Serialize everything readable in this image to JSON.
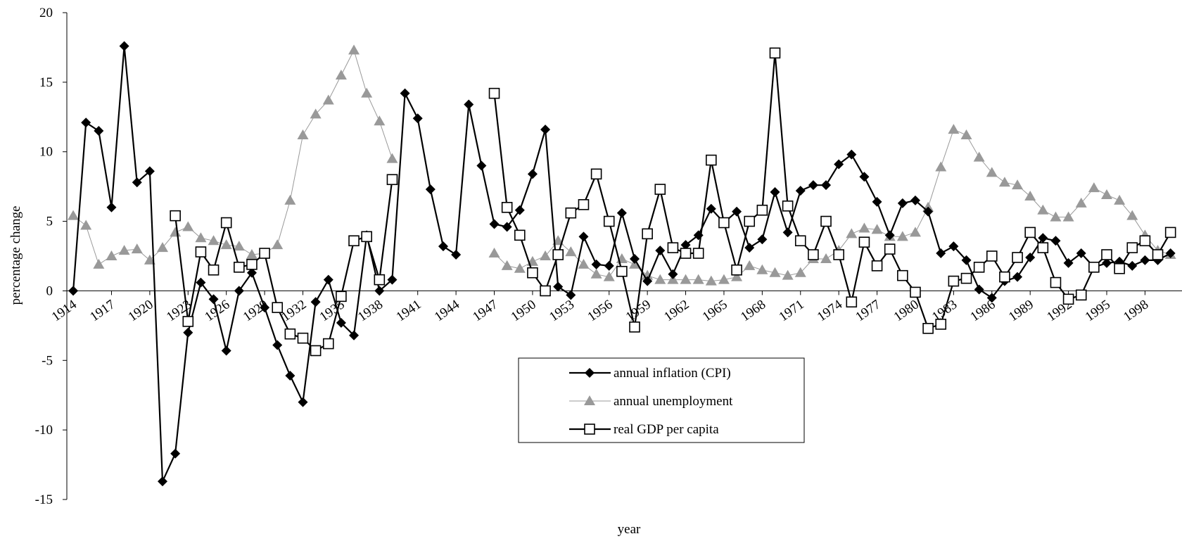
{
  "chart_data": {
    "type": "line",
    "x_label": "year",
    "y_label": "percentage change",
    "x": [
      1914,
      1915,
      1916,
      1917,
      1918,
      1919,
      1920,
      1921,
      1922,
      1923,
      1924,
      1925,
      1926,
      1927,
      1928,
      1929,
      1930,
      1931,
      1932,
      1933,
      1934,
      1935,
      1936,
      1937,
      1938,
      1939,
      1940,
      1941,
      1942,
      1943,
      1944,
      1945,
      1946,
      1947,
      1948,
      1949,
      1950,
      1951,
      1952,
      1953,
      1954,
      1955,
      1956,
      1957,
      1958,
      1959,
      1960,
      1961,
      1962,
      1963,
      1964,
      1965,
      1966,
      1967,
      1968,
      1969,
      1970,
      1971,
      1972,
      1973,
      1974,
      1975,
      1976,
      1977,
      1978,
      1979,
      1980,
      1981,
      1982,
      1983,
      1984,
      1985,
      1986,
      1987,
      1988,
      1989,
      1990,
      1991,
      1992,
      1993,
      1994,
      1995,
      1996,
      1997,
      1998,
      1999,
      2000
    ],
    "series": [
      {
        "name": "annual inflation (CPI)",
        "color": "#000000",
        "marker": "diamond",
        "values": [
          0,
          12.1,
          11.5,
          6.0,
          17.6,
          7.8,
          8.6,
          -13.7,
          -11.7,
          -3.0,
          0.6,
          -0.6,
          -4.3,
          0.0,
          1.3,
          -1.2,
          -3.9,
          -6.1,
          -8.0,
          -0.8,
          0.8,
          -2.3,
          -3.2,
          4.0,
          0.0,
          0.8,
          14.2,
          12.4,
          7.3,
          3.2,
          2.6,
          13.4,
          9.0,
          4.8,
          4.6,
          5.8,
          8.4,
          11.6,
          0.3,
          -0.3,
          3.9,
          1.9,
          1.8,
          5.6,
          2.3,
          0.7,
          2.9,
          1.2,
          3.3,
          4.0,
          5.9,
          4.9,
          5.7,
          3.1,
          3.7,
          7.1,
          4.2,
          7.2,
          7.6,
          7.6,
          9.1,
          9.8,
          8.2,
          6.4,
          4.0,
          6.3,
          6.5,
          5.7,
          2.7,
          3.2,
          2.2,
          0.1,
          -0.5,
          0.7,
          1.0,
          2.4,
          3.8,
          3.6,
          2.0,
          2.7,
          1.7,
          2.0,
          2.1,
          1.8,
          2.2,
          2.2,
          2.7
        ]
      },
      {
        "name": "annual unemployment",
        "color": "#999999",
        "marker": "triangle",
        "values": [
          5.4,
          4.7,
          1.9,
          2.5,
          2.9,
          3.0,
          2.2,
          3.1,
          4.2,
          4.6,
          3.8,
          3.6,
          3.3,
          3.2,
          2.6,
          2.7,
          3.3,
          6.5,
          11.2,
          12.7,
          13.7,
          15.5,
          17.3,
          14.2,
          12.2,
          9.5,
          null,
          null,
          null,
          null,
          null,
          null,
          null,
          2.7,
          1.8,
          1.6,
          2.1,
          2.5,
          3.6,
          2.8,
          1.9,
          1.2,
          1.0,
          2.3,
          1.9,
          1.1,
          0.8,
          0.8,
          0.8,
          0.8,
          0.7,
          0.8,
          1.0,
          1.8,
          1.5,
          1.3,
          1.1,
          1.3,
          2.3,
          2.3,
          2.9,
          4.1,
          4.5,
          4.4,
          3.9,
          3.9,
          4.2,
          6.0,
          8.9,
          11.6,
          11.2,
          9.6,
          8.5,
          7.8,
          7.6,
          6.8,
          5.8,
          5.3,
          5.3,
          6.3,
          7.4,
          6.9,
          6.5,
          5.4,
          4.0,
          2.9,
          2.6
        ]
      },
      {
        "name": "real GDP per capita",
        "color": "#000000",
        "marker": "square",
        "values": [
          null,
          null,
          null,
          null,
          null,
          null,
          null,
          null,
          5.4,
          -2.2,
          2.8,
          1.5,
          4.9,
          1.7,
          1.9,
          2.7,
          -1.2,
          -3.1,
          -3.4,
          -4.3,
          -3.8,
          -0.4,
          3.6,
          3.9,
          0.8,
          8.0,
          null,
          null,
          null,
          null,
          null,
          null,
          null,
          14.2,
          6.0,
          4.0,
          1.3,
          0.0,
          2.6,
          5.6,
          6.2,
          8.4,
          5.0,
          1.4,
          -2.6,
          4.1,
          7.3,
          3.1,
          2.7,
          2.7,
          9.4,
          4.9,
          1.5,
          5.0,
          5.8,
          17.1,
          6.1,
          3.6,
          2.6,
          5.0,
          2.6,
          -0.8,
          3.5,
          1.8,
          3.0,
          1.1,
          -0.1,
          -2.7,
          -2.4,
          0.7,
          0.9,
          1.7,
          2.5,
          1.0,
          2.4,
          4.2,
          3.1,
          0.6,
          -0.6,
          -0.3,
          1.7,
          2.6,
          1.6,
          3.1,
          3.6,
          2.6,
          4.2
        ]
      }
    ],
    "xlim": [
      1913.5,
      2000.9
    ],
    "ylim": [
      -15,
      20
    ],
    "xticks": [
      1914,
      1917,
      1920,
      1923,
      1926,
      1929,
      1932,
      1935,
      1938,
      1941,
      1944,
      1947,
      1950,
      1953,
      1956,
      1959,
      1962,
      1965,
      1968,
      1971,
      1974,
      1977,
      1980,
      1983,
      1986,
      1989,
      1992,
      1995,
      1998
    ],
    "yticks": [
      -15,
      -10,
      -5,
      0,
      5,
      10,
      15,
      20
    ],
    "grid": false,
    "legend": "lower center"
  }
}
